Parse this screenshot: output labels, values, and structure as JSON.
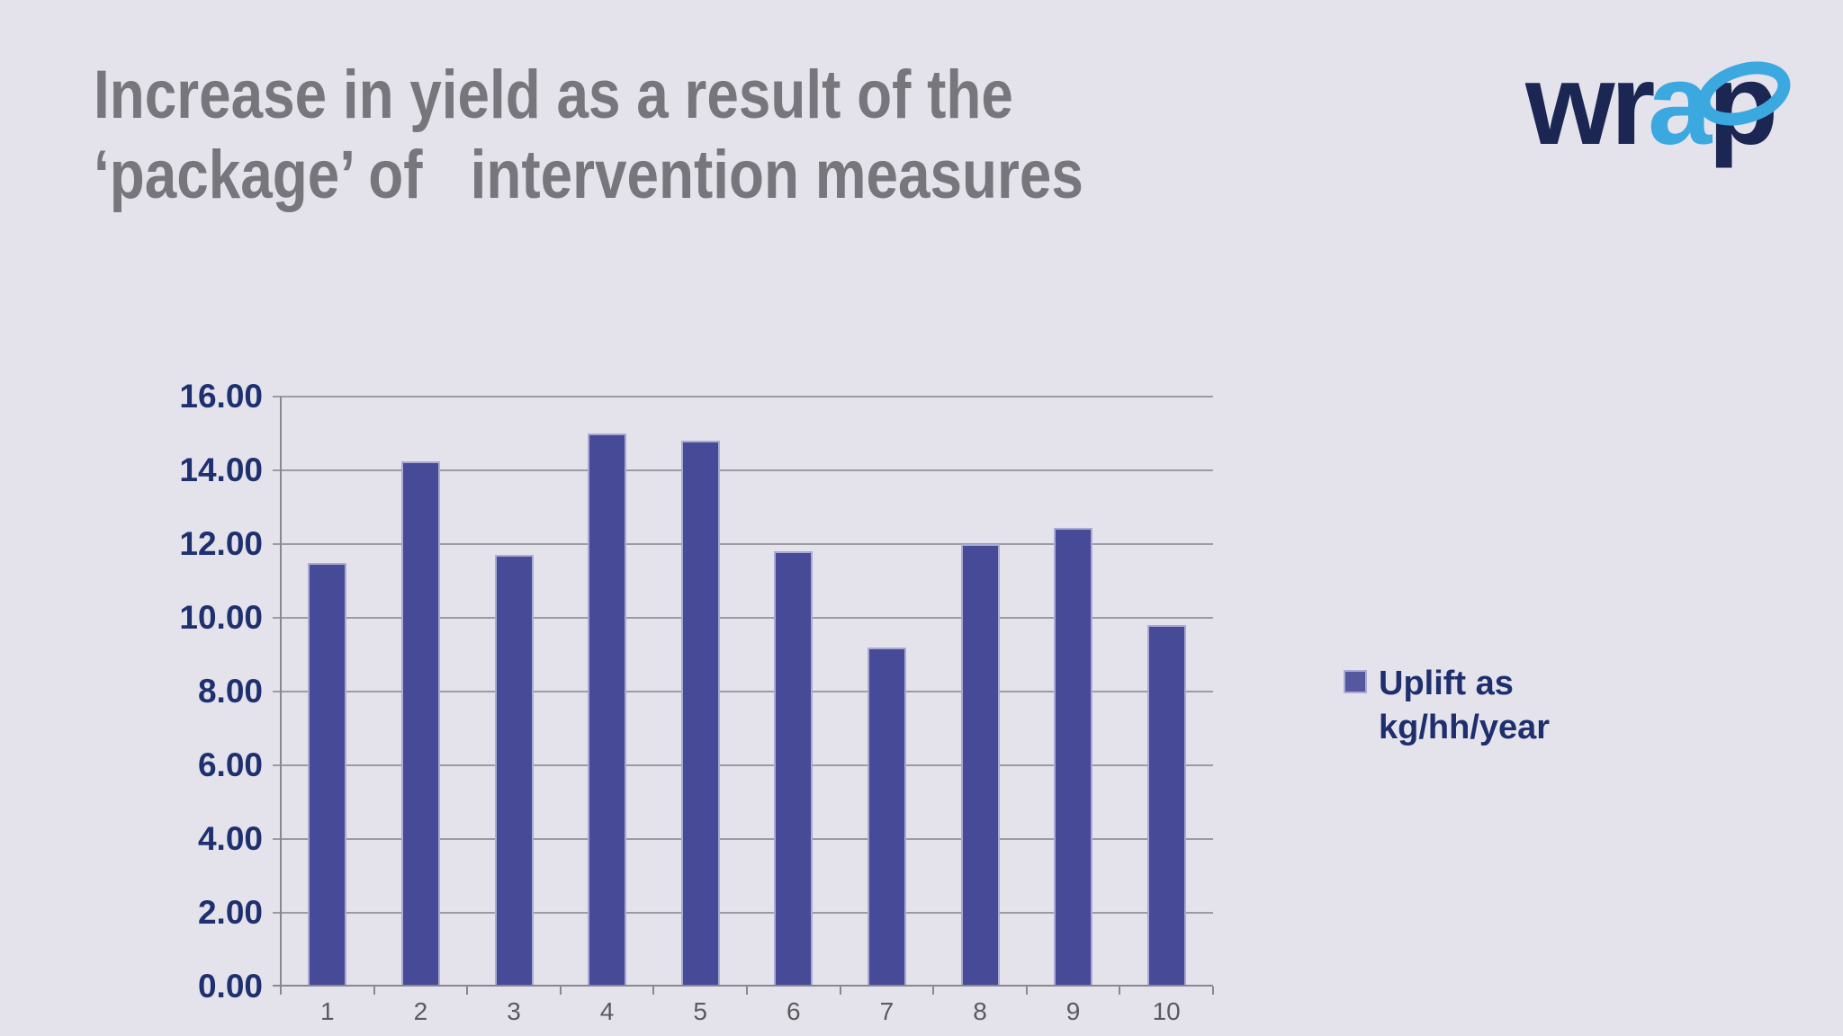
{
  "slide": {
    "title_line1": "Increase in yield as a result of the",
    "title_line2": "‘package’ of   intervention measures",
    "title_color": "#77767C",
    "background_color": "#E4E3EB"
  },
  "logo": {
    "name": "wrap-logo",
    "part1": "wr",
    "part2": "a",
    "part3": "p",
    "navy": "#1B2653",
    "blue": "#3BA8E0"
  },
  "chart_data": {
    "type": "bar",
    "title": "Increase in yield as a result of the ‘package’ of intervention measures",
    "categories": [
      "1",
      "2",
      "3",
      "4",
      "5",
      "6",
      "7",
      "8",
      "9",
      "10"
    ],
    "values": [
      11.5,
      14.25,
      11.7,
      15.0,
      14.8,
      11.8,
      9.2,
      12.0,
      12.45,
      9.8
    ],
    "series_name": "Uplift as kg/hh/year",
    "xlabel": "",
    "ylabel": "",
    "ylim": [
      0,
      16
    ],
    "ytick_step": 2,
    "ytick_labels": [
      "0.00",
      "2.00",
      "4.00",
      "6.00",
      "8.00",
      "10.00",
      "12.00",
      "14.00",
      "16.00"
    ],
    "grid": true,
    "legend_position": "right",
    "bar_color": "#474A96",
    "bar_border_color": "#A9ABD4",
    "gridline_color": "#9B9BA3",
    "axis_color": "#87878F",
    "ytick_color": "#1F3070",
    "xtick_color": "#5A5A5F"
  },
  "legend": {
    "swatch_color": "#55579F",
    "label_line1": "Uplift as",
    "label_line2": "kg/hh/year"
  }
}
